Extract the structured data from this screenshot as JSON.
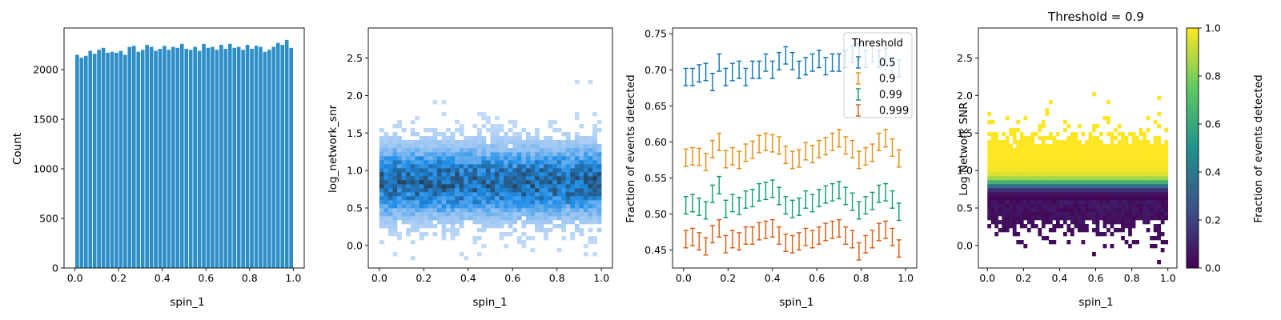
{
  "chart_data": [
    {
      "type": "bar",
      "subtype": "histogram",
      "title": "",
      "xlabel": "spin_1",
      "ylabel": "Count",
      "xlim": [
        -0.05,
        1.05
      ],
      "ylim": [
        0,
        2420
      ],
      "xticks": [
        0.0,
        0.2,
        0.4,
        0.6,
        0.8,
        1.0
      ],
      "xtick_labels": [
        "0.0",
        "0.2",
        "0.4",
        "0.6",
        "0.8",
        "1.0"
      ],
      "yticks": [
        0,
        500,
        1000,
        1500,
        2000
      ],
      "ytick_labels": [
        "0",
        "500",
        "1000",
        "1500",
        "2000"
      ],
      "bin_edges_start": 0.0,
      "bin_width": 0.02,
      "values": [
        2150,
        2120,
        2140,
        2190,
        2160,
        2200,
        2220,
        2170,
        2180,
        2170,
        2190,
        2150,
        2230,
        2240,
        2180,
        2200,
        2250,
        2230,
        2190,
        2210,
        2240,
        2200,
        2230,
        2220,
        2260,
        2210,
        2200,
        2230,
        2190,
        2260,
        2220,
        2230,
        2200,
        2250,
        2210,
        2260,
        2220,
        2230,
        2200,
        2250,
        2210,
        2240,
        2230,
        2180,
        2200,
        2230,
        2270,
        2250,
        2300,
        2220
      ],
      "color": "#2e8fc8"
    },
    {
      "type": "heatmap",
      "subtype": "2d-histogram",
      "title": "",
      "xlabel": "spin_1",
      "ylabel": "log_network_snr",
      "xlim": [
        -0.05,
        1.05
      ],
      "ylim": [
        -0.3,
        2.9
      ],
      "xticks": [
        0.0,
        0.2,
        0.4,
        0.6,
        0.8,
        1.0
      ],
      "xtick_labels": [
        "0.0",
        "0.2",
        "0.4",
        "0.6",
        "0.8",
        "1.0"
      ],
      "yticks": [
        0.0,
        0.5,
        1.0,
        1.5,
        2.0,
        2.5
      ],
      "ytick_labels": [
        "0.0",
        "0.5",
        "1.0",
        "1.5",
        "2.0",
        "2.5"
      ],
      "x_bins": 50,
      "y_bins": 60,
      "x_range": [
        0.0,
        1.0
      ],
      "y_range": [
        -0.3,
        2.9
      ],
      "density_center": 0.85,
      "density_sigma": 0.32,
      "colors": {
        "light": "#c6ddf7",
        "mid": "#1f8ee8",
        "dark": "#2a3d52"
      }
    },
    {
      "type": "line",
      "subtype": "errorbar",
      "title": "",
      "xlabel": "spin_1",
      "ylabel": "Fraction of events detected",
      "xlim": [
        -0.05,
        1.05
      ],
      "ylim": [
        0.425,
        0.758
      ],
      "xticks": [
        0.0,
        0.2,
        0.4,
        0.6,
        0.8,
        1.0
      ],
      "xtick_labels": [
        "0.0",
        "0.2",
        "0.4",
        "0.6",
        "0.8",
        "1.0"
      ],
      "yticks": [
        0.45,
        0.5,
        0.55,
        0.6,
        0.65,
        0.7,
        0.75
      ],
      "ytick_labels": [
        "0.45",
        "0.50",
        "0.55",
        "0.60",
        "0.65",
        "0.70",
        "0.75"
      ],
      "x": [
        0.01,
        0.04,
        0.07,
        0.1,
        0.13,
        0.16,
        0.19,
        0.22,
        0.25,
        0.28,
        0.31,
        0.34,
        0.37,
        0.4,
        0.43,
        0.46,
        0.49,
        0.52,
        0.55,
        0.58,
        0.61,
        0.64,
        0.67,
        0.7,
        0.73,
        0.76,
        0.79,
        0.82,
        0.85,
        0.88,
        0.91,
        0.94,
        0.97
      ],
      "error": 0.012,
      "legend_title": "Threshold",
      "legend_position": "top-right",
      "series": [
        {
          "name": "0.5",
          "color": "#0b72b3",
          "values": [
            0.69,
            0.69,
            0.695,
            0.697,
            0.683,
            0.71,
            0.69,
            0.697,
            0.7,
            0.69,
            0.7,
            0.7,
            0.71,
            0.7,
            0.712,
            0.72,
            0.712,
            0.7,
            0.705,
            0.71,
            0.715,
            0.705,
            0.71,
            0.71,
            0.715,
            0.722,
            0.725,
            0.715,
            0.722,
            0.715,
            0.718,
            0.705,
            0.702
          ]
        },
        {
          "name": "0.9",
          "color": "#e38c0c",
          "values": [
            0.578,
            0.58,
            0.579,
            0.572,
            0.59,
            0.6,
            0.576,
            0.58,
            0.575,
            0.585,
            0.589,
            0.597,
            0.6,
            0.598,
            0.595,
            0.582,
            0.575,
            0.577,
            0.587,
            0.583,
            0.59,
            0.594,
            0.6,
            0.605,
            0.595,
            0.59,
            0.575,
            0.58,
            0.585,
            0.6,
            0.605,
            0.592,
            0.577
          ]
        },
        {
          "name": "0.99",
          "color": "#0b9b6b",
          "values": [
            0.512,
            0.515,
            0.51,
            0.505,
            0.528,
            0.54,
            0.507,
            0.515,
            0.511,
            0.52,
            0.522,
            0.53,
            0.532,
            0.535,
            0.525,
            0.512,
            0.507,
            0.51,
            0.52,
            0.515,
            0.522,
            0.527,
            0.53,
            0.533,
            0.525,
            0.517,
            0.505,
            0.512,
            0.518,
            0.528,
            0.53,
            0.52,
            0.503
          ]
        },
        {
          "name": "0.999",
          "color": "#d95a0e",
          "values": [
            0.465,
            0.468,
            0.462,
            0.455,
            0.472,
            0.48,
            0.458,
            0.465,
            0.462,
            0.47,
            0.47,
            0.476,
            0.478,
            0.48,
            0.47,
            0.46,
            0.458,
            0.462,
            0.468,
            0.465,
            0.47,
            0.475,
            0.478,
            0.48,
            0.47,
            0.465,
            0.448,
            0.458,
            0.465,
            0.475,
            0.478,
            0.468,
            0.452
          ]
        }
      ]
    },
    {
      "type": "heatmap",
      "title": "Threshold = 0.9",
      "xlabel": "spin_1",
      "ylabel": "Log Network SNR",
      "xlim": [
        -0.05,
        1.05
      ],
      "ylim": [
        -0.3,
        2.9
      ],
      "xticks": [
        0.0,
        0.2,
        0.4,
        0.6,
        0.8,
        1.0
      ],
      "xtick_labels": [
        "0.0",
        "0.2",
        "0.4",
        "0.6",
        "0.8",
        "1.0"
      ],
      "yticks": [
        0.0,
        0.5,
        1.0,
        1.5,
        2.0,
        2.5
      ],
      "ytick_labels": [
        "0.0",
        "0.5",
        "1.0",
        "1.5",
        "2.0",
        "2.5"
      ],
      "colorbar_label": "Fraction of events detected",
      "colorbar_range": [
        0.0,
        1.0
      ],
      "colorbar_ticks": [
        0.0,
        0.2,
        0.4,
        0.6,
        0.8,
        1.0
      ],
      "colorbar_tick_labels": [
        "0.0",
        "0.2",
        "0.4",
        "0.6",
        "0.8",
        "1.0"
      ],
      "colormap": [
        "#440154",
        "#3b528b",
        "#21918c",
        "#5ec962",
        "#fde725"
      ],
      "x_bins": 50,
      "y_bins": 60,
      "transition_center": 0.82,
      "transition_width": 0.045
    }
  ]
}
